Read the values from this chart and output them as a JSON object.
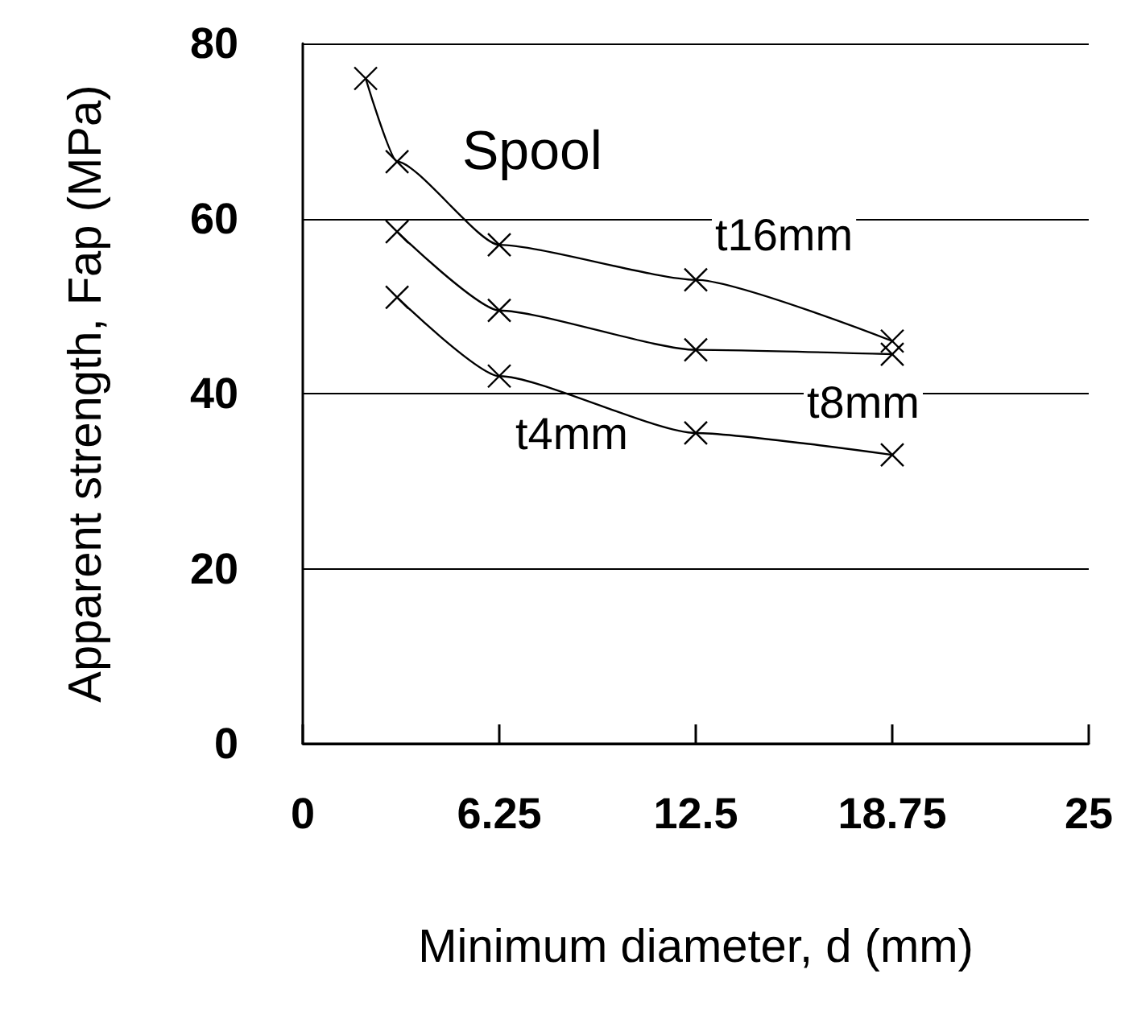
{
  "chart_data": {
    "type": "line",
    "xlabel": "Minimum diameter, d (mm)",
    "ylabel": "Apparent strength, Fap (MPa)",
    "xlim": [
      0,
      25
    ],
    "xticks": [
      0,
      6.25,
      12.5,
      18.75,
      25
    ],
    "ylim": [
      0,
      80
    ],
    "yticks": [
      0,
      20,
      40,
      60,
      80
    ],
    "grid": "y",
    "marker": "cross",
    "line_style": "solid",
    "annotations": [
      "Spool"
    ],
    "series": [
      {
        "name": "t16mm",
        "color": "#000000",
        "x": [
          2,
          3,
          6.25,
          12.5,
          18.75
        ],
        "values": [
          76,
          66.5,
          57,
          53,
          46
        ]
      },
      {
        "name": "t8mm",
        "color": "#000000",
        "x": [
          3,
          6.25,
          12.5,
          18.75
        ],
        "values": [
          58.5,
          49.5,
          45,
          44.5
        ]
      },
      {
        "name": "t4mm",
        "color": "#000000",
        "x": [
          3,
          6.25,
          12.5,
          18.75
        ],
        "values": [
          51,
          42,
          35.5,
          33
        ]
      }
    ]
  }
}
